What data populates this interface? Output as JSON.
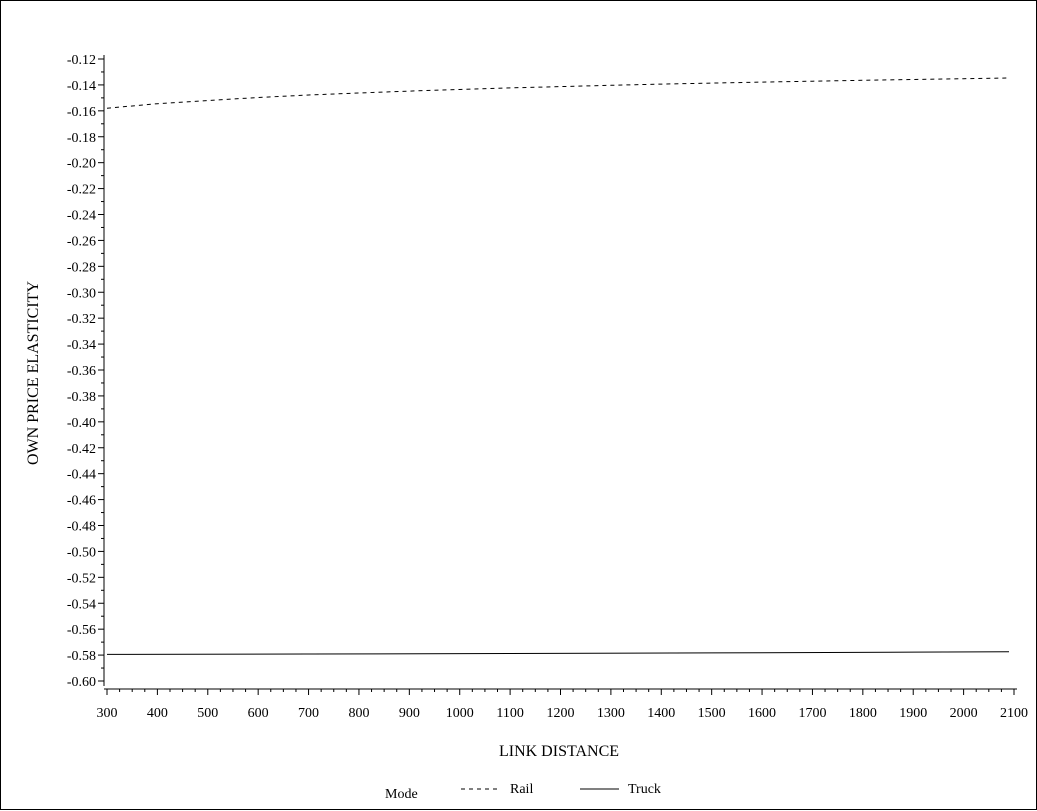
{
  "chart_data": {
    "type": "line",
    "xlabel": "LINK DISTANCE",
    "ylabel": "OWN PRICE ELASTICITY",
    "xlim": [
      300,
      2100
    ],
    "ylim": [
      -0.6,
      -0.12
    ],
    "x_ticks": [
      300,
      400,
      500,
      600,
      700,
      800,
      900,
      1000,
      1100,
      1200,
      1300,
      1400,
      1500,
      1600,
      1700,
      1800,
      1900,
      2000,
      2100
    ],
    "y_ticks": [
      -0.12,
      -0.14,
      -0.16,
      -0.18,
      -0.2,
      -0.22,
      -0.24,
      -0.26,
      -0.28,
      -0.3,
      -0.32,
      -0.34,
      -0.36,
      -0.38,
      -0.4,
      -0.42,
      -0.44,
      -0.46,
      -0.48,
      -0.5,
      -0.52,
      -0.54,
      -0.56,
      -0.58,
      -0.6
    ],
    "y_tick_labels": [
      "-0.12",
      "-0.14",
      "-0.16",
      "-0.18",
      "-0.20",
      "-0.22",
      "-0.24",
      "-0.26",
      "-0.28",
      "-0.30",
      "-0.32",
      "-0.34",
      "-0.36",
      "-0.38",
      "-0.40",
      "-0.42",
      "-0.44",
      "-0.46",
      "-0.48",
      "-0.50",
      "-0.52",
      "-0.54",
      "-0.56",
      "-0.58",
      "-0.60"
    ],
    "legend": {
      "title": "Mode",
      "placement": "bottom-center"
    },
    "series": [
      {
        "name": "Rail",
        "style": "dashed",
        "color": "#000000",
        "x": [
          300,
          400,
          500,
          600,
          700,
          800,
          900,
          1000,
          1100,
          1200,
          1300,
          1400,
          1500,
          1600,
          1700,
          1800,
          1900,
          2000,
          2090
        ],
        "y": [
          -0.158,
          -0.1545,
          -0.152,
          -0.1497,
          -0.1478,
          -0.1462,
          -0.1448,
          -0.1435,
          -0.1423,
          -0.1413,
          -0.1403,
          -0.1394,
          -0.1386,
          -0.1378,
          -0.1371,
          -0.1364,
          -0.1358,
          -0.1352,
          -0.1347
        ]
      },
      {
        "name": "Truck",
        "style": "solid",
        "color": "#000000",
        "x": [
          300,
          700,
          1100,
          1500,
          1900,
          2090
        ],
        "y": [
          -0.5795,
          -0.5792,
          -0.5788,
          -0.5783,
          -0.5777,
          -0.5774
        ]
      }
    ]
  }
}
